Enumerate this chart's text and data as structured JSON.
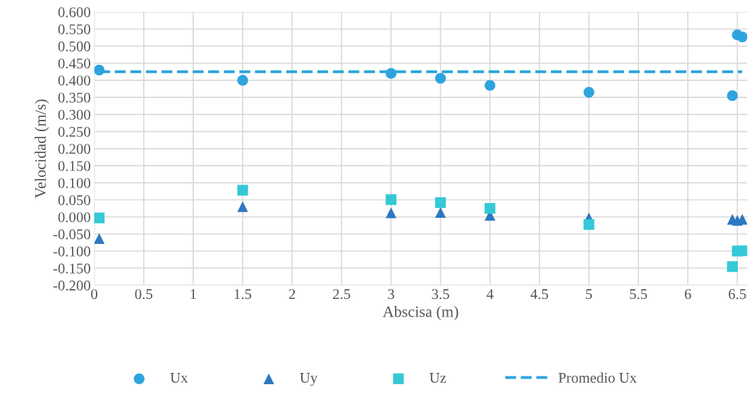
{
  "chart_data": {
    "type": "scatter",
    "xlabel": "Abscisa (m)",
    "ylabel": "Velocidad (m/s)",
    "xlim": [
      0,
      6.6
    ],
    "xticks": [
      0,
      0.5,
      1,
      1.5,
      2,
      2.5,
      3,
      3.5,
      4,
      4.5,
      5,
      5.5,
      6,
      6.5
    ],
    "ylim": [
      -0.2,
      0.6
    ],
    "yticks": [
      {
        "value": -0.2,
        "label": "-0.200"
      },
      {
        "value": -0.15,
        "label": "-0.150"
      },
      {
        "value": -0.1,
        "label": "-0.100"
      },
      {
        "value": -0.05,
        "label": "-0.050"
      },
      {
        "value": 0,
        "label": "0.000"
      },
      {
        "value": 0.05,
        "label": "0.050"
      },
      {
        "value": 0.1,
        "label": "0.100"
      },
      {
        "value": 0.15,
        "label": "0.150"
      },
      {
        "value": 0.2,
        "label": "0.200"
      },
      {
        "value": 0.25,
        "label": "0.250"
      },
      {
        "value": 0.3,
        "label": "0.300"
      },
      {
        "value": 0.35,
        "label": "0.350"
      },
      {
        "value": 0.4,
        "label": "0.400"
      },
      {
        "value": 0.45,
        "label": "0.450"
      },
      {
        "value": 0.5,
        "label": "0.500"
      },
      {
        "value": 0.55,
        "label": "0.550"
      },
      {
        "value": 0.6,
        "label": "0.600"
      }
    ],
    "grid": true,
    "legend": "bottom",
    "x": [
      0.05,
      1.5,
      3,
      3.5,
      4,
      5,
      6.45,
      6.5,
      6.55
    ],
    "series": [
      {
        "name": "Ux",
        "marker": "circle",
        "color": "#2ea4de",
        "values": [
          0.43,
          0.4,
          0.42,
          0.406,
          0.385,
          0.365,
          0.355,
          0.533,
          0.527
        ]
      },
      {
        "name": "Uy",
        "marker": "triangle",
        "color": "#2e78c0",
        "values": [
          -0.063,
          0.03,
          0.012,
          0.013,
          0.005,
          -0.003,
          -0.007,
          -0.01,
          -0.007
        ]
      },
      {
        "name": "Uz",
        "marker": "square",
        "color": "#35c8d6",
        "values": [
          -0.003,
          0.078,
          0.051,
          0.042,
          0.025,
          -0.022,
          -0.145,
          -0.1,
          -0.099
        ]
      },
      {
        "name": "Promedio Ux",
        "type": "line",
        "line_style": "dashed",
        "color": "#2ea4de",
        "x": [
          0.05,
          6.55
        ],
        "values": [
          0.425,
          0.425
        ]
      }
    ]
  }
}
